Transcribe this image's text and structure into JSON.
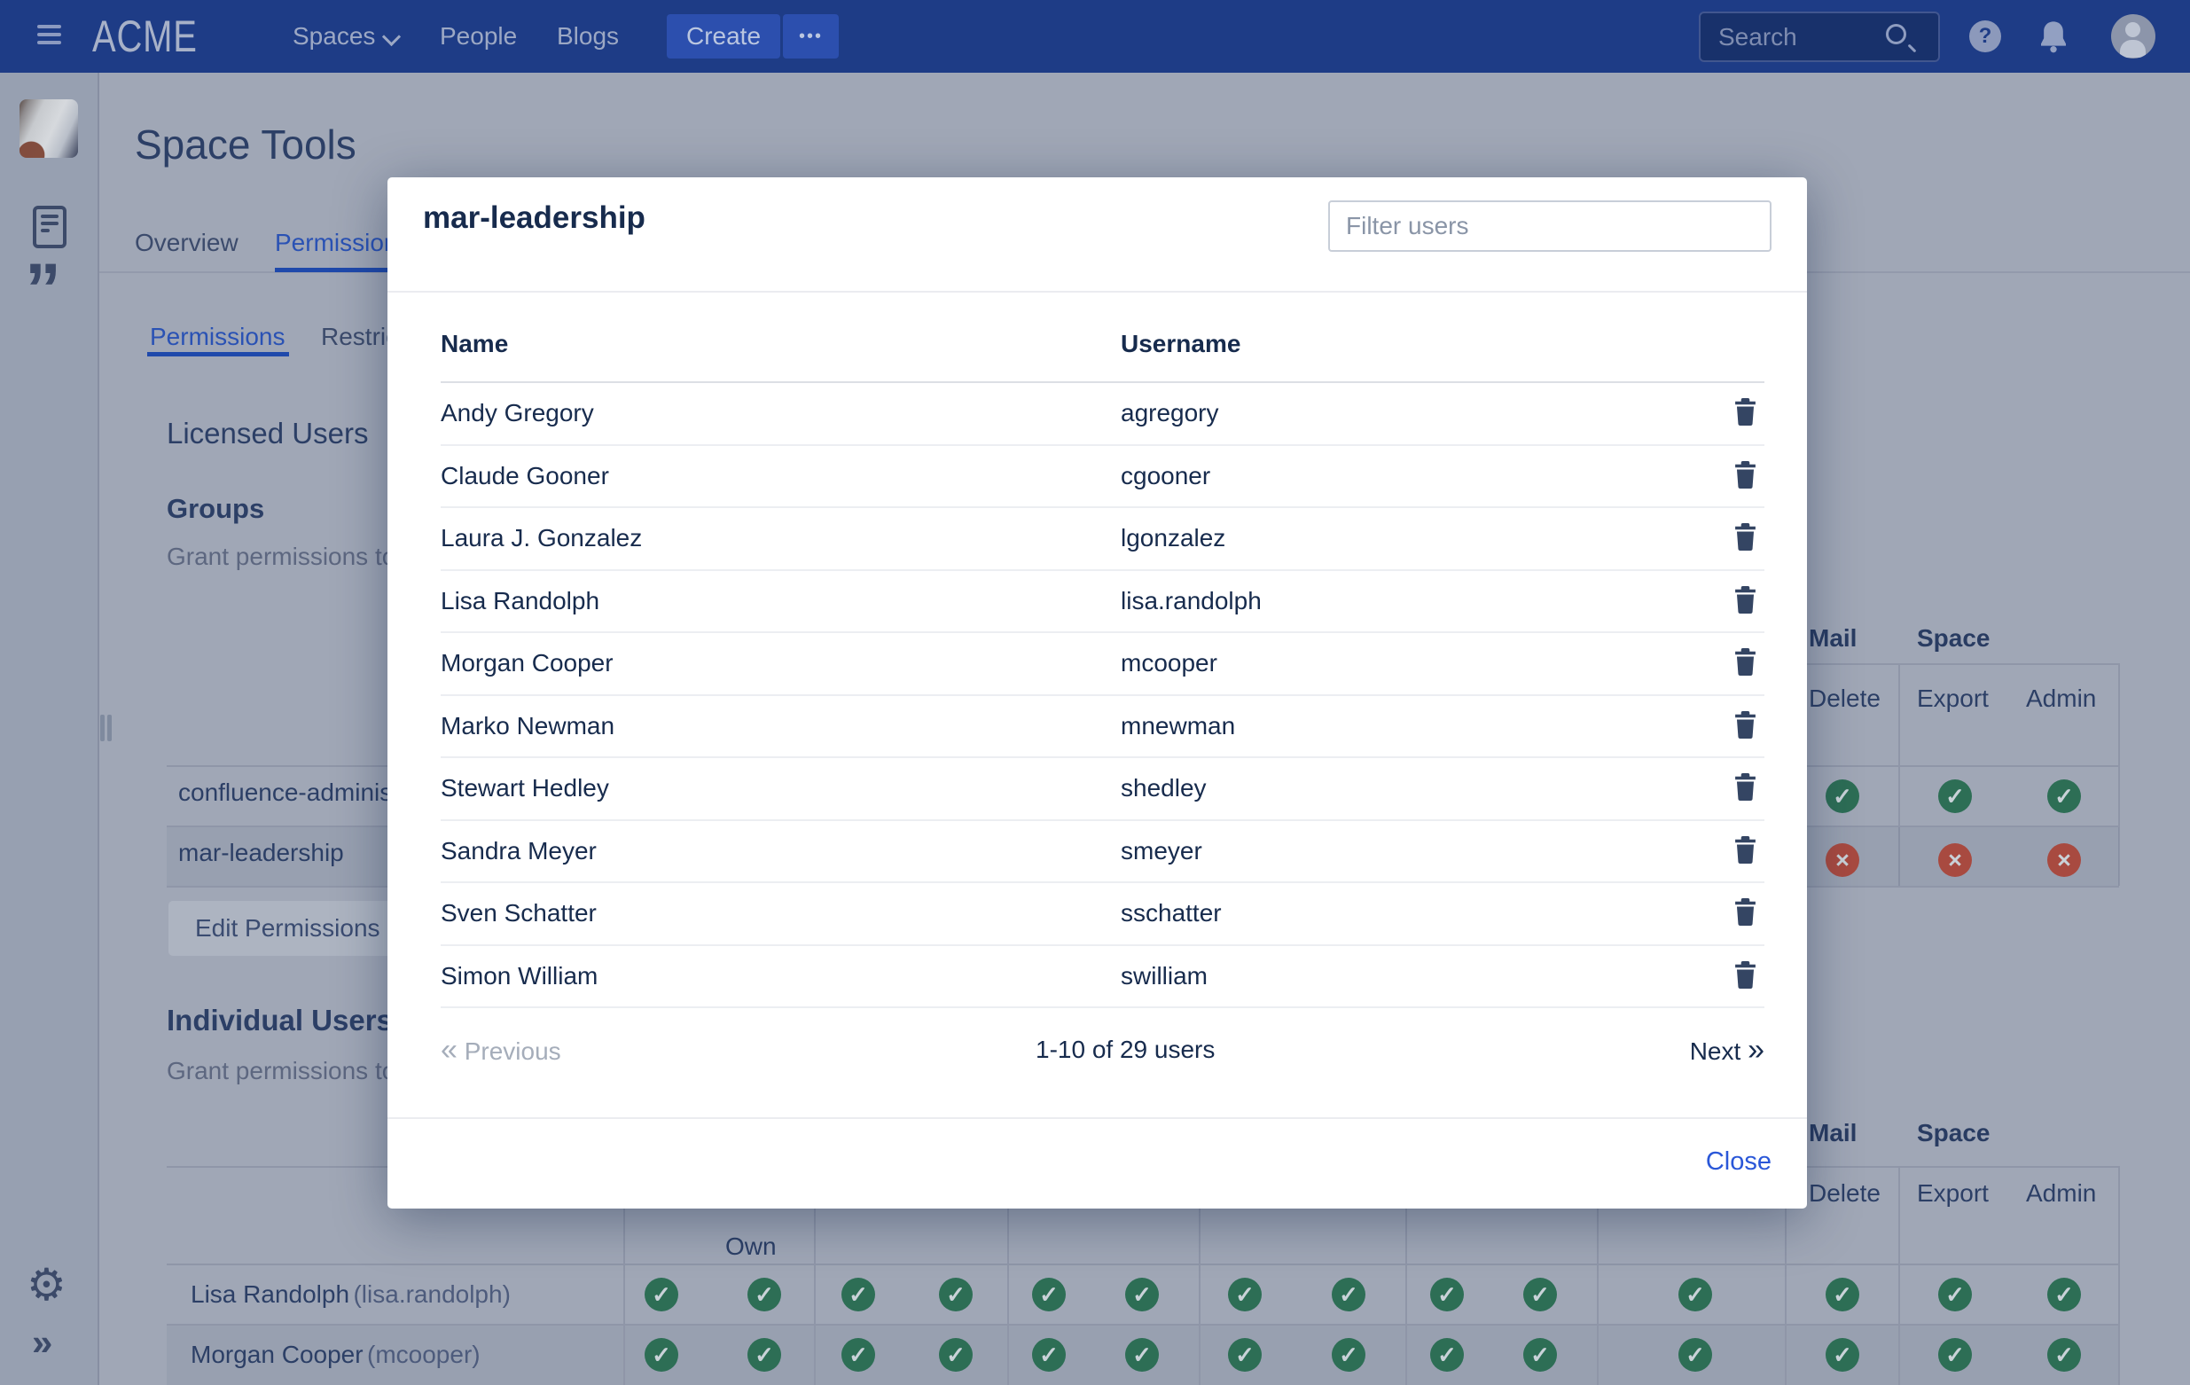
{
  "nav": {
    "logo": "ACME",
    "items": [
      {
        "label": "Spaces",
        "has_chevron": true
      },
      {
        "label": "People",
        "has_chevron": false
      },
      {
        "label": "Blogs",
        "has_chevron": false
      }
    ],
    "create_label": "Create",
    "more_label": "•••",
    "search_placeholder": "Search"
  },
  "icons": {
    "check": "✓",
    "cross": "×",
    "prev_glyph": "«",
    "next_glyph": "»",
    "quote_glyph": "”",
    "gear_glyph": "⚙",
    "expand_glyph": "»",
    "help_glyph": "?"
  },
  "colors": {
    "nav_blue": "#1e3c86",
    "link_blue": "#2a52b4",
    "modal_link_blue": "#2a57d8",
    "check_green": "#2d6e55",
    "cross_red": "#a84a40"
  },
  "page": {
    "title": "Space Tools",
    "tabs": [
      "Overview",
      "Permissions"
    ],
    "active_tab": "Permissions",
    "subtabs": [
      "Permissions",
      "Restrictions"
    ],
    "active_subtab": "Permissions",
    "licensed_heading": "Licensed Users",
    "columns": {
      "mail": "Mail",
      "space": "Space",
      "delete": "Delete",
      "export": "Export",
      "admin": "Admin",
      "own": "Own"
    },
    "groups": {
      "heading": "Groups",
      "description": "Grant permissions to groups",
      "edit_button": "Edit Permissions",
      "rows": [
        {
          "name": "confluence-administrators",
          "perms": [
            "check",
            "check",
            "check"
          ]
        },
        {
          "name": "mar-leadership",
          "perms": [
            "cross",
            "cross",
            "cross"
          ]
        }
      ]
    },
    "individual": {
      "heading": "Individual Users",
      "description": "Grant permissions to individual users",
      "rows": [
        {
          "name": "Lisa Randolph",
          "username": "lisa.randolph",
          "checks": 14
        },
        {
          "name": "Morgan Cooper",
          "username": "mcooper",
          "checks": 14
        }
      ]
    }
  },
  "modal": {
    "title": "mar-leadership",
    "filter_placeholder": "Filter users",
    "columns": [
      "Name",
      "Username"
    ],
    "users": [
      {
        "name": "Andy Gregory",
        "username": "agregory"
      },
      {
        "name": "Claude Gooner",
        "username": "cgooner"
      },
      {
        "name": "Laura J. Gonzalez",
        "username": "lgonzalez"
      },
      {
        "name": "Lisa Randolph",
        "username": "lisa.randolph"
      },
      {
        "name": "Morgan Cooper",
        "username": "mcooper"
      },
      {
        "name": "Marko Newman",
        "username": "mnewman"
      },
      {
        "name": "Stewart Hedley",
        "username": "shedley"
      },
      {
        "name": "Sandra Meyer",
        "username": "smeyer"
      },
      {
        "name": "Sven Schatter",
        "username": "sschatter"
      },
      {
        "name": "Simon William",
        "username": "swilliam"
      }
    ],
    "pagination": {
      "previous": "Previous",
      "summary": "1-10 of 29 users",
      "next": "Next"
    },
    "close": "Close"
  }
}
